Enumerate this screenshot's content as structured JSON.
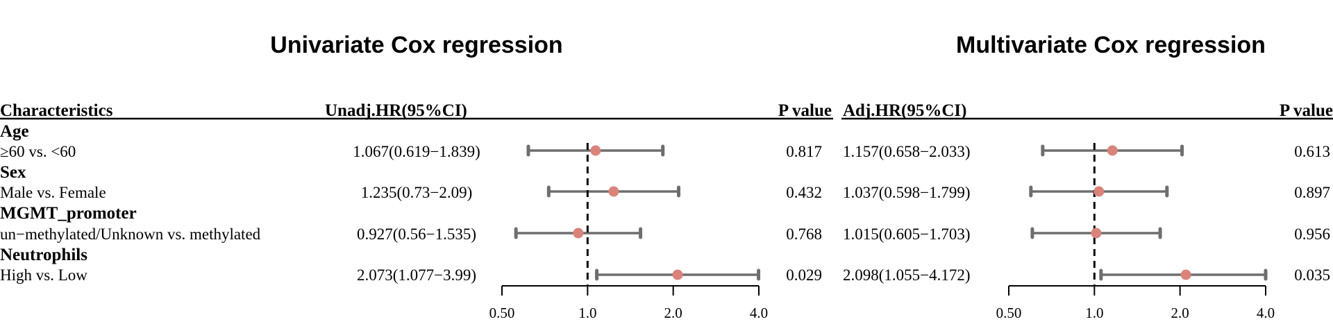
{
  "chart_data": [
    {
      "type": "forest",
      "title": "Univariate Cox regression",
      "headers": {
        "characteristics": "Characteristics",
        "hr": "Unadj.HR(95%CI)",
        "p": "P value"
      },
      "scale": "log",
      "xlim": [
        0.5,
        4.0
      ],
      "ticks": [
        0.5,
        1.0,
        2.0,
        4.0
      ],
      "tick_labels": [
        "0.50",
        "1.0",
        "2.0",
        "4.0"
      ],
      "reference_line": 1.0,
      "rows": [
        {
          "group": "Age",
          "label": "≥60 vs. <60",
          "hr_text": "1.067(0.619−1.839)",
          "hr": 1.067,
          "lo": 0.619,
          "hi": 1.839,
          "p": "0.817"
        },
        {
          "group": "Sex",
          "label": "Male vs. Female",
          "hr_text": "1.235(0.73−2.09)",
          "hr": 1.235,
          "lo": 0.73,
          "hi": 2.09,
          "p": "0.432"
        },
        {
          "group": "MGMT_promoter",
          "label": "un−methylated/Unknown vs. methylated",
          "hr_text": "0.927(0.56−1.535)",
          "hr": 0.927,
          "lo": 0.56,
          "hi": 1.535,
          "p": "0.768"
        },
        {
          "group": "Neutrophils",
          "label": "High vs. Low",
          "hr_text": "2.073(1.077−3.99)",
          "hr": 2.073,
          "lo": 1.077,
          "hi": 3.99,
          "p": "0.029"
        }
      ]
    },
    {
      "type": "forest",
      "title": "Multivariate Cox regression",
      "headers": {
        "hr": "Adj.HR(95%CI)",
        "p": "P value"
      },
      "scale": "log",
      "xlim": [
        0.5,
        4.0
      ],
      "ticks": [
        0.5,
        1.0,
        2.0,
        4.0
      ],
      "tick_labels": [
        "0.50",
        "1.0",
        "2.0",
        "4.0"
      ],
      "reference_line": 1.0,
      "rows": [
        {
          "hr_text": "1.157(0.658−2.033)",
          "hr": 1.157,
          "lo": 0.658,
          "hi": 2.033,
          "p": "0.613"
        },
        {
          "hr_text": "1.037(0.598−1.799)",
          "hr": 1.037,
          "lo": 0.598,
          "hi": 1.799,
          "p": "0.897"
        },
        {
          "hr_text": "1.015(0.605−1.703)",
          "hr": 1.015,
          "lo": 0.605,
          "hi": 1.703,
          "p": "0.956"
        },
        {
          "hr_text": "2.098(1.055−4.172)",
          "hr": 2.098,
          "lo": 1.055,
          "hi": 4.172,
          "p": "0.035"
        }
      ]
    }
  ],
  "colors": {
    "point": "#d9837b",
    "ci_line": "#6e6e6e",
    "axis": "#000000",
    "ref_line": "#000000"
  }
}
